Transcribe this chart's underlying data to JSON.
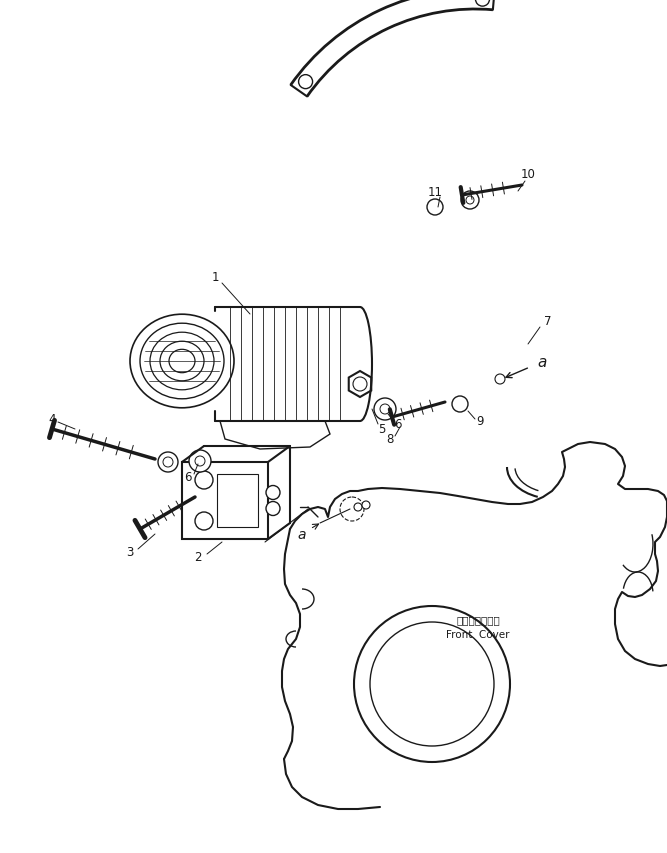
{
  "bg_color": "#ffffff",
  "line_color": "#1a1a1a",
  "fig_width": 6.67,
  "fig_height": 8.54,
  "dpi": 100,
  "front_cover_jp": "フロントカバー",
  "front_cover_en": "Front  Cover",
  "label_fs": 8.5,
  "small_fs": 7.5
}
